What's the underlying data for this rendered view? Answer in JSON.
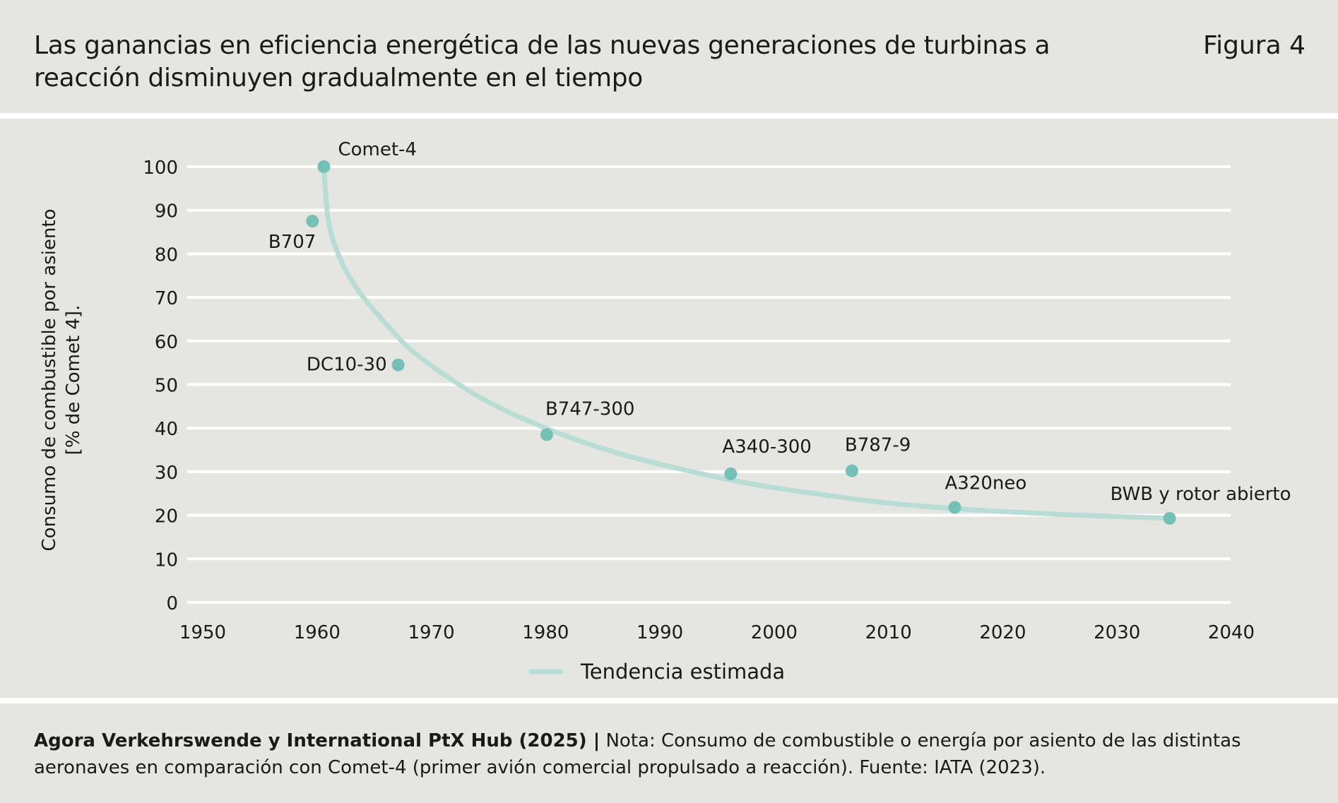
{
  "header": {
    "title": "Las ganancias en eficiencia energética de las nuevas generaciones de turbinas a reacción disminuyen gradualmente en el tiempo",
    "figure_label": "Figura 4"
  },
  "chart_data": {
    "type": "scatter",
    "title": "",
    "ylabel_line1": "Consumo de combustible por asiento",
    "ylabel_line2": "[% de Comet 4].",
    "xlabel": "",
    "xlim": [
      1950,
      2040
    ],
    "ylim": [
      0,
      100
    ],
    "x_ticks": [
      1950,
      1960,
      1970,
      1980,
      1990,
      2000,
      2010,
      2020,
      2030,
      2040
    ],
    "y_ticks": [
      0,
      10,
      20,
      30,
      40,
      50,
      60,
      70,
      80,
      90,
      100
    ],
    "grid": "horizontal",
    "points": [
      {
        "label": "Comet-4",
        "x": 1960.6,
        "y": 100
      },
      {
        "label": "B707",
        "x": 1959.6,
        "y": 87.5
      },
      {
        "label": "DC10-30",
        "x": 1967.1,
        "y": 54.5
      },
      {
        "label": "B747-300",
        "x": 1980.1,
        "y": 38.5
      },
      {
        "label": "A340-300",
        "x": 1996.2,
        "y": 29.5
      },
      {
        "label": "B787-9",
        "x": 2006.8,
        "y": 30.2
      },
      {
        "label": "A320neo",
        "x": 2015.8,
        "y": 21.8
      },
      {
        "label": "BWB y rotor abierto",
        "x": 2034.6,
        "y": 19.3
      }
    ],
    "trend": {
      "name": "Tendencia estimada",
      "x": [
        1960.6,
        1961.0,
        1962.0,
        1963.5,
        1965.5,
        1968.0,
        1971.0,
        1975.0,
        1980.0,
        1986.0,
        1992.0,
        1998.0,
        2004.0,
        2010.0,
        2016.0,
        2022.0,
        2028.0,
        2034.6
      ],
      "y": [
        100,
        87.5,
        79,
        72,
        65.5,
        58.5,
        52.5,
        46,
        40,
        34.5,
        30.5,
        27.2,
        24.8,
        22.8,
        21.5,
        20.6,
        19.9,
        19.3
      ]
    },
    "colors": {
      "point": "#74c0b7",
      "trend": "#b9dcd7",
      "grid": "#ffffff"
    },
    "legend": {
      "position": "bottom-center",
      "label": "Tendencia estimada"
    }
  },
  "footer": {
    "source": "Agora Verkehrswende y International PtX Hub (2025) |",
    "note": " Nota: Consumo de combustible o energía por asiento de las distintas aeronaves en comparación con Comet-4 (primer avión comercial propulsado a reacción). Fuente: IATA (2023)."
  }
}
